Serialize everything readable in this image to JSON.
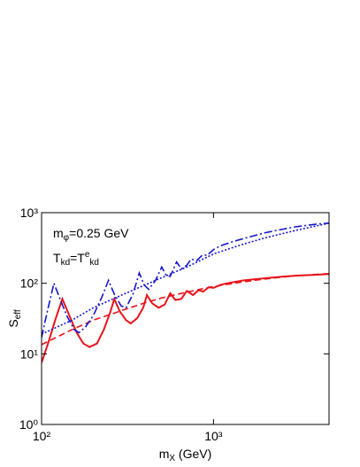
{
  "chart_data": {
    "type": "line",
    "log_x": true,
    "log_y": true,
    "x_label": [
      {
        "text": "m",
        "style": "normal"
      },
      {
        "text": "X",
        "style": "sub"
      },
      {
        "text": " (GeV)",
        "style": "normal"
      }
    ],
    "y_label": [
      {
        "text": "S",
        "style": "normal"
      },
      {
        "text": "eff",
        "style": "sub"
      }
    ],
    "annotations": [
      [
        {
          "text": "m",
          "style": "normal"
        },
        {
          "text": "φ",
          "style": "sub"
        },
        {
          "text": "=0.25 GeV",
          "style": "normal"
        }
      ],
      [
        {
          "text": "T",
          "style": "normal"
        },
        {
          "text": "kd",
          "style": "sub"
        },
        {
          "text": "=T",
          "style": "normal"
        },
        {
          "text": "e",
          "style": "sup"
        },
        {
          "text": "kd",
          "style": "sub"
        }
      ]
    ],
    "xlim": [
      100,
      4700
    ],
    "ylim": [
      1,
      1000
    ],
    "xticks": [
      {
        "value": 100,
        "label": "10²"
      },
      {
        "value": 1000,
        "label": "10³"
      }
    ],
    "yticks": [
      {
        "value": 1,
        "label": "10⁰"
      },
      {
        "value": 10,
        "label": "10¹"
      },
      {
        "value": 100,
        "label": "10²"
      },
      {
        "value": 1000,
        "label": "10³"
      }
    ],
    "series": [
      {
        "color": "#e8131a",
        "dash": "solid",
        "x": [
          100,
          110,
          120,
          132,
          145,
          160,
          175,
          190,
          210,
          230,
          250,
          265,
          285,
          310,
          330,
          360,
          390,
          410,
          440,
          480,
          520,
          560,
          600,
          650,
          700,
          760,
          820,
          870,
          940,
          1000,
          1100,
          1200,
          1500,
          2000,
          2500,
          3000,
          4000,
          4700
        ],
        "values": [
          7.5,
          15,
          30,
          60,
          35,
          20,
          14,
          12.5,
          14,
          22,
          38,
          60,
          40,
          30,
          27,
          32,
          45,
          68,
          52,
          45,
          50,
          72,
          58,
          60,
          78,
          68,
          80,
          76,
          88,
          86,
          95,
          100,
          110,
          118,
          124,
          128,
          132,
          135
        ]
      },
      {
        "color": "#e8131a",
        "dash": "dashed",
        "x": [
          100,
          150,
          200,
          300,
          400,
          500,
          700,
          1000,
          1500,
          2000,
          3000,
          4700
        ],
        "values": [
          13.5,
          22,
          30,
          42,
          53,
          62,
          75,
          90,
          105,
          115,
          128,
          137
        ]
      },
      {
        "color": "#1515cc",
        "dash": "dashdot",
        "x": [
          100,
          108,
          118,
          128,
          140,
          155,
          165,
          180,
          200,
          225,
          245,
          265,
          290,
          310,
          340,
          370,
          395,
          420,
          460,
          500,
          530,
          560,
          610,
          650,
          700,
          740,
          800,
          860,
          920,
          1000,
          1100,
          1300,
          1600,
          2000,
          2500,
          3000,
          4000,
          4700
        ],
        "values": [
          17,
          40,
          100,
          60,
          35,
          22,
          20,
          24,
          35,
          65,
          110,
          70,
          48,
          45,
          70,
          140,
          95,
          82,
          110,
          170,
          130,
          125,
          200,
          160,
          180,
          220,
          210,
          250,
          250,
          300,
          340,
          390,
          450,
          520,
          580,
          630,
          690,
          710
        ]
      },
      {
        "color": "#1515cc",
        "dash": "dotted",
        "x": [
          100,
          150,
          200,
          300,
          500,
          700,
          1000,
          1500,
          2000,
          3000,
          4700
        ],
        "values": [
          19,
          30,
          45,
          70,
          120,
          170,
          260,
          360,
          440,
          560,
          710
        ]
      }
    ]
  }
}
